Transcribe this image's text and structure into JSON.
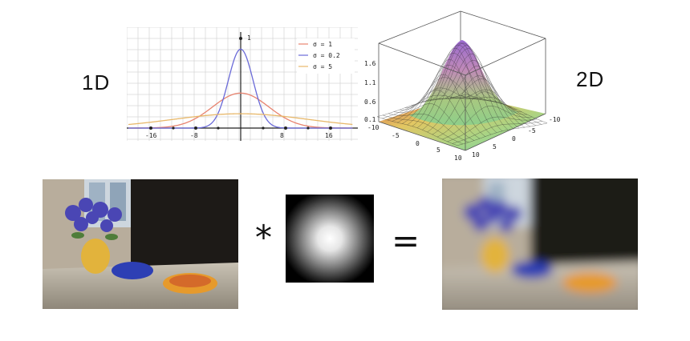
{
  "labels": {
    "one_d": "1D",
    "two_d": "2D",
    "convolve": "*",
    "equals": "="
  },
  "chart_1d": {
    "type": "line",
    "x_ticks": [
      "-16",
      "-8",
      "8",
      "16"
    ],
    "y_tick": "1",
    "xlim": [
      -19,
      19
    ],
    "ylim": [
      0,
      1.1
    ],
    "series": [
      {
        "name": "σ = 1",
        "sigma": 1,
        "color": "#e8836f"
      },
      {
        "name": "σ = 0.2",
        "sigma": 0.2,
        "color": "#6a6ad8"
      },
      {
        "name": "σ = 5",
        "sigma": 5,
        "color": "#e8b86a"
      }
    ]
  },
  "chart_2d": {
    "type": "surface",
    "z_ticks": [
      "1.6",
      "1.1",
      "0.6",
      "0.1"
    ],
    "x_ticks": [
      "-10",
      "-5",
      "0",
      "5",
      "10"
    ],
    "y_ticks": [
      "-10",
      "-5",
      "0",
      "5",
      "10"
    ]
  },
  "images": {
    "input": "photo-input",
    "kernel": "gaussian-kernel",
    "output": "photo-blurred"
  }
}
